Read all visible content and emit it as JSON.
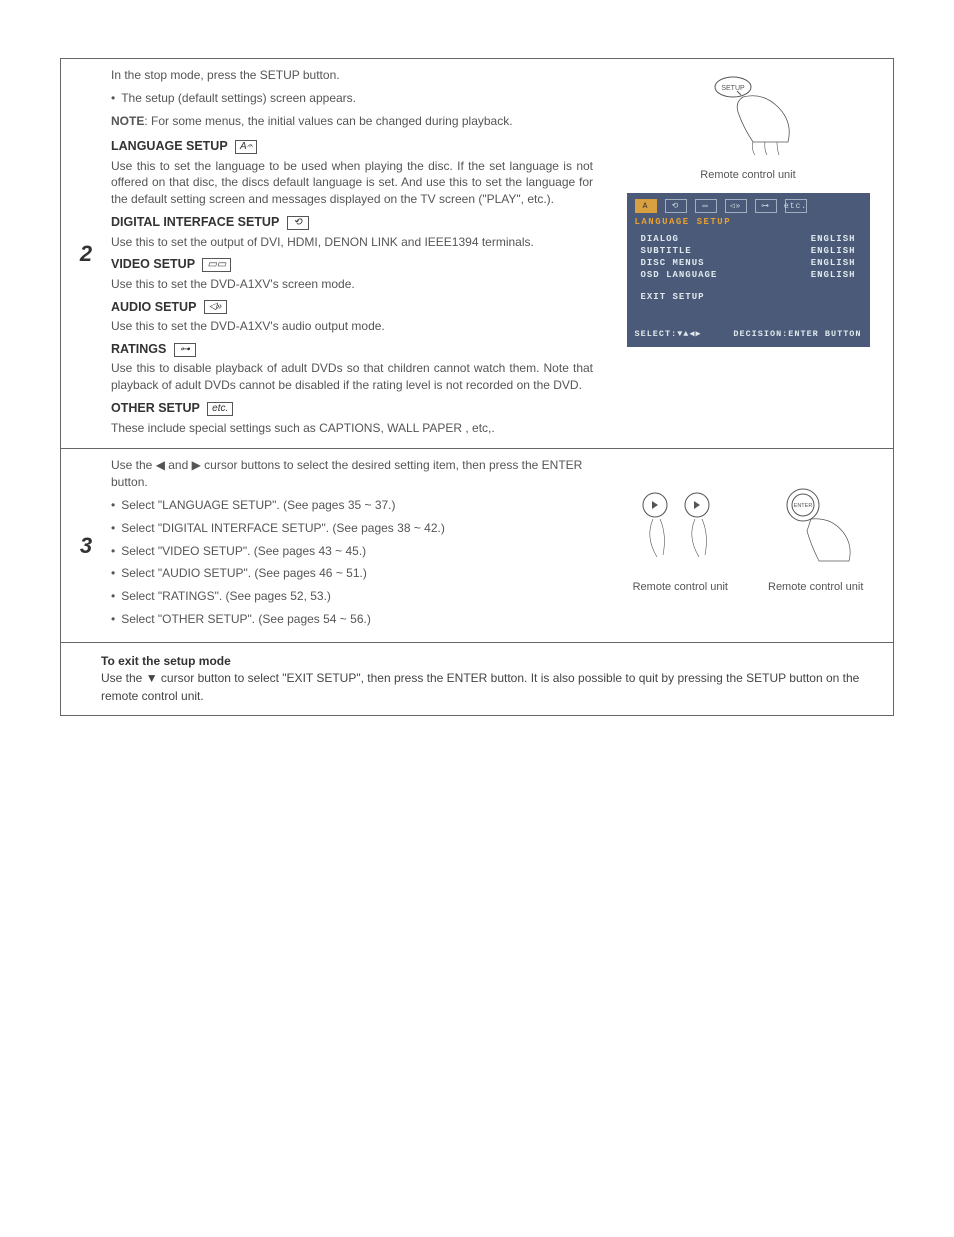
{
  "step2": {
    "number": "2",
    "intro1": "In the stop mode, press the SETUP button.",
    "intro2": "The setup (default settings) screen appears.",
    "note_label": "NOTE",
    "note_text": ": For some menus, the initial values can be changed during playback.",
    "lang_head": "LANGUAGE SETUP",
    "lang_body": "Use this to set the language to be used when playing the disc. If the set language is not offered on that disc, the discs default language is set. And use this to set the language for the default setting screen and messages displayed on the TV screen (\"PLAY\", etc.).",
    "dig_head": "DIGITAL INTERFACE SETUP",
    "dig_body": "Use this to set the output of DVI, HDMI, DENON LINK and IEEE1394 terminals.",
    "vid_head": "VIDEO SETUP",
    "vid_body": "Use this to set the DVD-A1XV's screen mode.",
    "aud_head": "AUDIO SETUP",
    "aud_body": "Use this to set the DVD-A1XV's audio output mode.",
    "rat_head": "RATINGS",
    "rat_body": "Use this to disable playback of adult DVDs so that children cannot watch them. Note that playback of adult DVDs cannot be disabled if the rating level is not recorded on the DVD.",
    "oth_head": "OTHER SETUP",
    "oth_body": "These include special settings such as CAPTIONS, WALL PAPER , etc,.",
    "remote1_caption": "Remote control unit",
    "setup_btn_label": "SETUP",
    "osd": {
      "tab_etc": "etc.",
      "title": "LANGUAGE SETUP",
      "rows": [
        {
          "l": "DIALOG",
          "r": "ENGLISH"
        },
        {
          "l": "SUBTITLE",
          "r": "ENGLISH"
        },
        {
          "l": "DISC MENUS",
          "r": "ENGLISH"
        },
        {
          "l": "OSD LANGUAGE",
          "r": "ENGLISH"
        }
      ],
      "exit": "EXIT SETUP",
      "footer_l": "SELECT:▼▲◀▶",
      "footer_r": "DECISION:ENTER BUTTON"
    }
  },
  "step3": {
    "number": "3",
    "intro": "Use the ◀ and ▶ cursor buttons to select the desired setting item, then press the ENTER button.",
    "items": [
      "Select \"LANGUAGE SETUP\". (See pages 35 ~ 37.)",
      "Select \"DIGITAL INTERFACE SETUP\". (See pages 38 ~ 42.)",
      "Select \"VIDEO SETUP\". (See pages 43 ~ 45.)",
      "Select \"AUDIO SETUP\". (See pages 46 ~ 51.)",
      "Select \"RATINGS\". (See pages 52, 53.)",
      "Select \"OTHER SETUP\". (See pages 54 ~ 56.)"
    ],
    "enter_label": "ENTER",
    "caption_l": "Remote control unit",
    "caption_r": "Remote control unit"
  },
  "exit": {
    "title": "To exit the setup mode",
    "body": "Use the ▼ cursor button to select \"EXIT SETUP\", then press the ENTER button. It is also possible to quit by pressing the SETUP button on the remote control unit."
  },
  "icons": {
    "lang": "A𝄐",
    "dig": "⟲",
    "vid": "▭▭",
    "aud": "◁»",
    "rat": "⊶",
    "oth": "etc."
  }
}
